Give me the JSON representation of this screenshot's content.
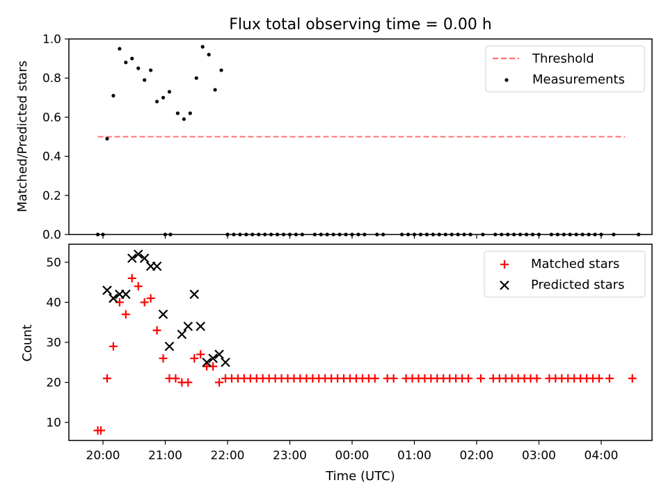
{
  "title": "Flux total observing time = 0.00 h",
  "chart_data": [
    {
      "type": "scatter",
      "panel": "top",
      "ylabel": "Matched/Predicted stars",
      "ylim": [
        0,
        1.0
      ],
      "yticks": [
        0.0,
        0.2,
        0.4,
        0.6,
        0.8,
        1.0
      ],
      "ytick_labels": [
        "0.0",
        "0.2",
        "0.4",
        "0.6",
        "0.8",
        "1.0"
      ],
      "legend": {
        "position": "top-right",
        "entries": [
          "Threshold",
          "Measurements"
        ]
      },
      "threshold": {
        "name": "Threshold",
        "y": 0.5,
        "x_start": "19:55",
        "x_end": "04:23",
        "color": "#ff7070"
      },
      "series": [
        {
          "name": "Measurements",
          "color": "#000000",
          "points": [
            [
              "19:55",
              0.0
            ],
            [
              "20:00",
              0.0
            ],
            [
              "20:04",
              0.49
            ],
            [
              "20:10",
              0.71
            ],
            [
              "20:16",
              0.95
            ],
            [
              "20:22",
              0.88
            ],
            [
              "20:28",
              0.9
            ],
            [
              "20:34",
              0.85
            ],
            [
              "20:40",
              0.79
            ],
            [
              "20:46",
              0.84
            ],
            [
              "20:52",
              0.68
            ],
            [
              "20:58",
              0.7
            ],
            [
              "21:04",
              0.73
            ],
            [
              "21:00",
              0.0
            ],
            [
              "21:05",
              0.0
            ],
            [
              "21:12",
              0.62
            ],
            [
              "21:18",
              0.59
            ],
            [
              "21:24",
              0.62
            ],
            [
              "21:30",
              0.8
            ],
            [
              "21:36",
              0.96
            ],
            [
              "21:42",
              0.92
            ],
            [
              "21:48",
              0.74
            ],
            [
              "21:54",
              0.84
            ],
            [
              "22:00",
              0.0
            ],
            [
              "22:06",
              0.0
            ],
            [
              "22:12",
              0.0
            ],
            [
              "22:18",
              0.0
            ],
            [
              "22:24",
              0.0
            ],
            [
              "22:30",
              0.0
            ],
            [
              "22:36",
              0.0
            ],
            [
              "22:42",
              0.0
            ],
            [
              "22:48",
              0.0
            ],
            [
              "22:54",
              0.0
            ],
            [
              "23:00",
              0.0
            ],
            [
              "23:06",
              0.0
            ],
            [
              "23:12",
              0.0
            ],
            [
              "23:24",
              0.0
            ],
            [
              "23:30",
              0.0
            ],
            [
              "23:36",
              0.0
            ],
            [
              "23:42",
              0.0
            ],
            [
              "23:48",
              0.0
            ],
            [
              "23:54",
              0.0
            ],
            [
              "00:00",
              0.0
            ],
            [
              "00:06",
              0.0
            ],
            [
              "00:12",
              0.0
            ],
            [
              "00:24",
              0.0
            ],
            [
              "00:30",
              0.0
            ],
            [
              "00:48",
              0.0
            ],
            [
              "00:54",
              0.0
            ],
            [
              "01:00",
              0.0
            ],
            [
              "01:06",
              0.0
            ],
            [
              "01:12",
              0.0
            ],
            [
              "01:18",
              0.0
            ],
            [
              "01:24",
              0.0
            ],
            [
              "01:30",
              0.0
            ],
            [
              "01:36",
              0.0
            ],
            [
              "01:42",
              0.0
            ],
            [
              "01:48",
              0.0
            ],
            [
              "01:54",
              0.0
            ],
            [
              "02:06",
              0.0
            ],
            [
              "02:18",
              0.0
            ],
            [
              "02:24",
              0.0
            ],
            [
              "02:30",
              0.0
            ],
            [
              "02:36",
              0.0
            ],
            [
              "02:42",
              0.0
            ],
            [
              "02:48",
              0.0
            ],
            [
              "02:54",
              0.0
            ],
            [
              "03:00",
              0.0
            ],
            [
              "03:12",
              0.0
            ],
            [
              "03:18",
              0.0
            ],
            [
              "03:24",
              0.0
            ],
            [
              "03:30",
              0.0
            ],
            [
              "03:36",
              0.0
            ],
            [
              "03:42",
              0.0
            ],
            [
              "03:48",
              0.0
            ],
            [
              "03:54",
              0.0
            ],
            [
              "04:00",
              0.0
            ],
            [
              "04:12",
              0.0
            ],
            [
              "04:36",
              0.0
            ]
          ]
        }
      ]
    },
    {
      "type": "scatter",
      "panel": "bottom",
      "xlabel": "Time (UTC)",
      "ylabel": "Count",
      "ylim": [
        5.5,
        54.5
      ],
      "yticks": [
        10,
        20,
        30,
        40,
        50
      ],
      "xticks": [
        "20:00",
        "21:00",
        "22:00",
        "23:00",
        "00:00",
        "01:00",
        "02:00",
        "03:00",
        "04:00"
      ],
      "xlim": [
        "19:26",
        "04:48"
      ],
      "legend": {
        "position": "top-right",
        "entries": [
          "Matched stars",
          "Predicted stars"
        ]
      },
      "series": [
        {
          "name": "Matched stars",
          "marker": "plus",
          "color": "#ff0000",
          "points": [
            [
              "19:55",
              8
            ],
            [
              "19:58",
              8
            ],
            [
              "20:04",
              21
            ],
            [
              "20:10",
              29
            ],
            [
              "20:16",
              40
            ],
            [
              "20:22",
              37
            ],
            [
              "20:28",
              46
            ],
            [
              "20:34",
              44
            ],
            [
              "20:40",
              40
            ],
            [
              "20:46",
              41
            ],
            [
              "20:52",
              33
            ],
            [
              "20:58",
              26
            ],
            [
              "21:04",
              21
            ],
            [
              "21:10",
              21
            ],
            [
              "21:16",
              20
            ],
            [
              "21:22",
              20
            ],
            [
              "21:28",
              26
            ],
            [
              "21:34",
              27
            ],
            [
              "21:40",
              24
            ],
            [
              "21:46",
              24
            ],
            [
              "21:52",
              20
            ],
            [
              "21:58",
              21
            ],
            [
              "22:04",
              21
            ],
            [
              "22:10",
              21
            ],
            [
              "22:16",
              21
            ],
            [
              "22:22",
              21
            ],
            [
              "22:28",
              21
            ],
            [
              "22:34",
              21
            ],
            [
              "22:40",
              21
            ],
            [
              "22:46",
              21
            ],
            [
              "22:52",
              21
            ],
            [
              "22:58",
              21
            ],
            [
              "23:04",
              21
            ],
            [
              "23:10",
              21
            ],
            [
              "23:16",
              21
            ],
            [
              "23:22",
              21
            ],
            [
              "23:28",
              21
            ],
            [
              "23:34",
              21
            ],
            [
              "23:40",
              21
            ],
            [
              "23:46",
              21
            ],
            [
              "23:52",
              21
            ],
            [
              "23:58",
              21
            ],
            [
              "00:04",
              21
            ],
            [
              "00:10",
              21
            ],
            [
              "00:16",
              21
            ],
            [
              "00:22",
              21
            ],
            [
              "00:34",
              21
            ],
            [
              "00:40",
              21
            ],
            [
              "00:52",
              21
            ],
            [
              "00:58",
              21
            ],
            [
              "01:04",
              21
            ],
            [
              "01:10",
              21
            ],
            [
              "01:16",
              21
            ],
            [
              "01:22",
              21
            ],
            [
              "01:28",
              21
            ],
            [
              "01:34",
              21
            ],
            [
              "01:40",
              21
            ],
            [
              "01:46",
              21
            ],
            [
              "01:52",
              21
            ],
            [
              "02:04",
              21
            ],
            [
              "02:16",
              21
            ],
            [
              "02:22",
              21
            ],
            [
              "02:28",
              21
            ],
            [
              "02:34",
              21
            ],
            [
              "02:40",
              21
            ],
            [
              "02:46",
              21
            ],
            [
              "02:52",
              21
            ],
            [
              "02:58",
              21
            ],
            [
              "03:10",
              21
            ],
            [
              "03:16",
              21
            ],
            [
              "03:22",
              21
            ],
            [
              "03:28",
              21
            ],
            [
              "03:34",
              21
            ],
            [
              "03:40",
              21
            ],
            [
              "03:46",
              21
            ],
            [
              "03:52",
              21
            ],
            [
              "03:58",
              21
            ],
            [
              "04:08",
              21
            ],
            [
              "04:30",
              21
            ]
          ]
        },
        {
          "name": "Predicted stars",
          "marker": "x",
          "color": "#000000",
          "points": [
            [
              "20:04",
              43
            ],
            [
              "20:10",
              41
            ],
            [
              "20:16",
              42
            ],
            [
              "20:22",
              42
            ],
            [
              "20:28",
              51
            ],
            [
              "20:34",
              52
            ],
            [
              "20:40",
              51
            ],
            [
              "20:46",
              49
            ],
            [
              "20:52",
              49
            ],
            [
              "20:58",
              37
            ],
            [
              "21:04",
              29
            ],
            [
              "21:16",
              32
            ],
            [
              "21:22",
              34
            ],
            [
              "21:28",
              42
            ],
            [
              "21:34",
              34
            ],
            [
              "21:40",
              25
            ],
            [
              "21:46",
              26
            ],
            [
              "21:52",
              27
            ],
            [
              "21:58",
              25
            ]
          ]
        }
      ]
    }
  ]
}
